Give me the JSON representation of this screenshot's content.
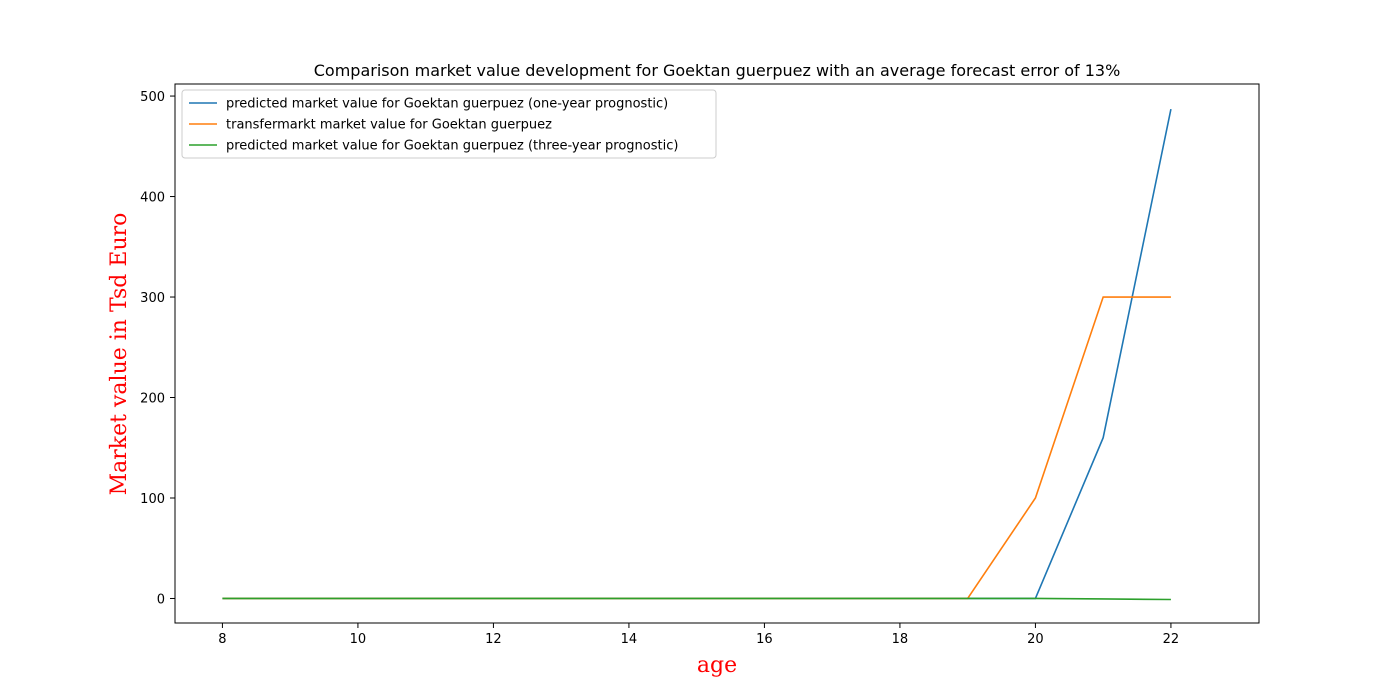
{
  "chart_data": {
    "type": "line",
    "title": "Comparison market value development for Goektan guerpuez with an average forecast error of 13%",
    "xlabel": "age",
    "ylabel": "Market value in Tsd Euro",
    "label_color": "#ff0000",
    "xlim": [
      7.3,
      23.3
    ],
    "ylim": [
      -24.4,
      512
    ],
    "xticks": [
      8,
      10,
      12,
      14,
      16,
      18,
      20,
      22
    ],
    "yticks": [
      0,
      100,
      200,
      300,
      400,
      500
    ],
    "grid": false,
    "legend_position": "upper-left",
    "x": [
      8,
      9,
      10,
      11,
      12,
      13,
      14,
      15,
      16,
      17,
      18,
      19,
      20,
      21,
      22
    ],
    "series": [
      {
        "name": "predicted market value for Goektan guerpuez (one-year prognostic)",
        "color": "#1f77b4",
        "values": [
          0,
          0,
          0,
          0,
          0,
          0,
          0,
          0,
          0,
          0,
          0,
          0,
          0,
          160,
          487
        ]
      },
      {
        "name": "transfermarkt market value for Goektan guerpuez",
        "color": "#ff7f0e",
        "values": [
          0,
          0,
          0,
          0,
          0,
          0,
          0,
          0,
          0,
          0,
          0,
          0,
          100,
          300,
          300
        ]
      },
      {
        "name": "predicted market value for Goektan guerpuez (three-year prognostic)",
        "color": "#2ca02c",
        "values": [
          0,
          0,
          0,
          0,
          0,
          0,
          0,
          0,
          0,
          0,
          0,
          0,
          0,
          -0.5,
          -1
        ]
      }
    ]
  }
}
